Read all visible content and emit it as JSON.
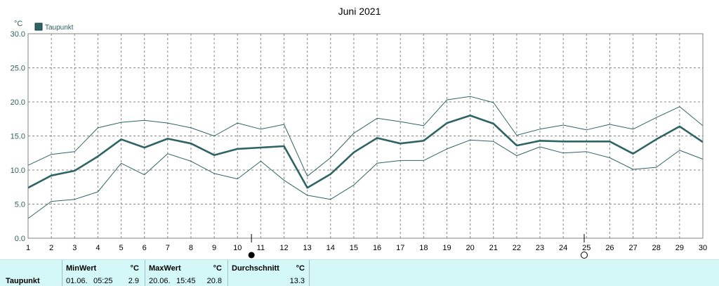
{
  "chart_data": {
    "type": "line",
    "title": "Juni 2021",
    "ylabel": "°C",
    "ylim": [
      0,
      30
    ],
    "yticks": [
      "0.0",
      "5.0",
      "10.0",
      "15.0",
      "20.0",
      "25.0",
      "30.0"
    ],
    "x": [
      1,
      2,
      3,
      4,
      5,
      6,
      7,
      8,
      9,
      10,
      11,
      12,
      13,
      14,
      15,
      16,
      17,
      18,
      19,
      20,
      21,
      22,
      23,
      24,
      25,
      26,
      27,
      28,
      29,
      30
    ],
    "xticks": [
      "1",
      "2",
      "3",
      "4",
      "5",
      "6",
      "7",
      "8",
      "9",
      "10",
      "11",
      "12",
      "13",
      "14",
      "15",
      "16",
      "17",
      "18",
      "19",
      "20",
      "21",
      "22",
      "23",
      "24",
      "25",
      "26",
      "27",
      "28",
      "29",
      "30"
    ],
    "grid": true,
    "legend": "top-left",
    "colors": {
      "line": "#2f6464",
      "grid": "#888888",
      "frame": "#808080",
      "footer_bg": "#d4f7f7"
    },
    "series": [
      {
        "name": "Taupunkt",
        "role": "mean",
        "values": [
          7.4,
          9.2,
          9.9,
          12.0,
          14.5,
          13.3,
          14.6,
          13.9,
          12.2,
          13.1,
          13.3,
          13.5,
          7.4,
          9.4,
          12.6,
          14.7,
          13.9,
          14.3,
          16.9,
          18.0,
          16.8,
          13.6,
          14.3,
          14.2,
          14.2,
          14.2,
          12.4,
          14.5,
          16.4,
          14.1
        ]
      },
      {
        "role": "max",
        "values": [
          10.7,
          12.3,
          12.7,
          16.2,
          17.0,
          17.3,
          16.9,
          16.2,
          15.0,
          16.9,
          16.0,
          16.7,
          9.1,
          11.8,
          15.4,
          17.6,
          17.1,
          16.5,
          20.3,
          20.8,
          19.9,
          15.1,
          16.0,
          16.6,
          15.9,
          16.7,
          16.0,
          17.7,
          19.3,
          16.5
        ]
      },
      {
        "role": "min",
        "values": [
          2.9,
          5.4,
          5.7,
          6.8,
          11.0,
          9.3,
          12.4,
          11.3,
          9.5,
          8.7,
          11.3,
          8.5,
          6.3,
          5.7,
          7.8,
          11.0,
          11.4,
          11.4,
          13.1,
          14.4,
          14.2,
          12.1,
          13.4,
          12.5,
          12.7,
          11.8,
          10.1,
          10.4,
          12.9,
          11.6
        ]
      }
    ],
    "markers": [
      {
        "symbol": "new-moon-icon",
        "x": 10.6
      },
      {
        "symbol": "full-moon-icon",
        "x": 24.9
      }
    ]
  },
  "footer": {
    "row_label": "Taupunkt",
    "min": {
      "header": "MinWert",
      "unit": "°C",
      "date": "01.06.",
      "time": "05:25",
      "value": "2.9"
    },
    "max": {
      "header": "MaxWert",
      "unit": "°C",
      "date": "20.06.",
      "time": "15:45",
      "value": "20.8"
    },
    "avg": {
      "header": "Durchschnitt",
      "unit": "°C",
      "value": "13.3"
    }
  }
}
